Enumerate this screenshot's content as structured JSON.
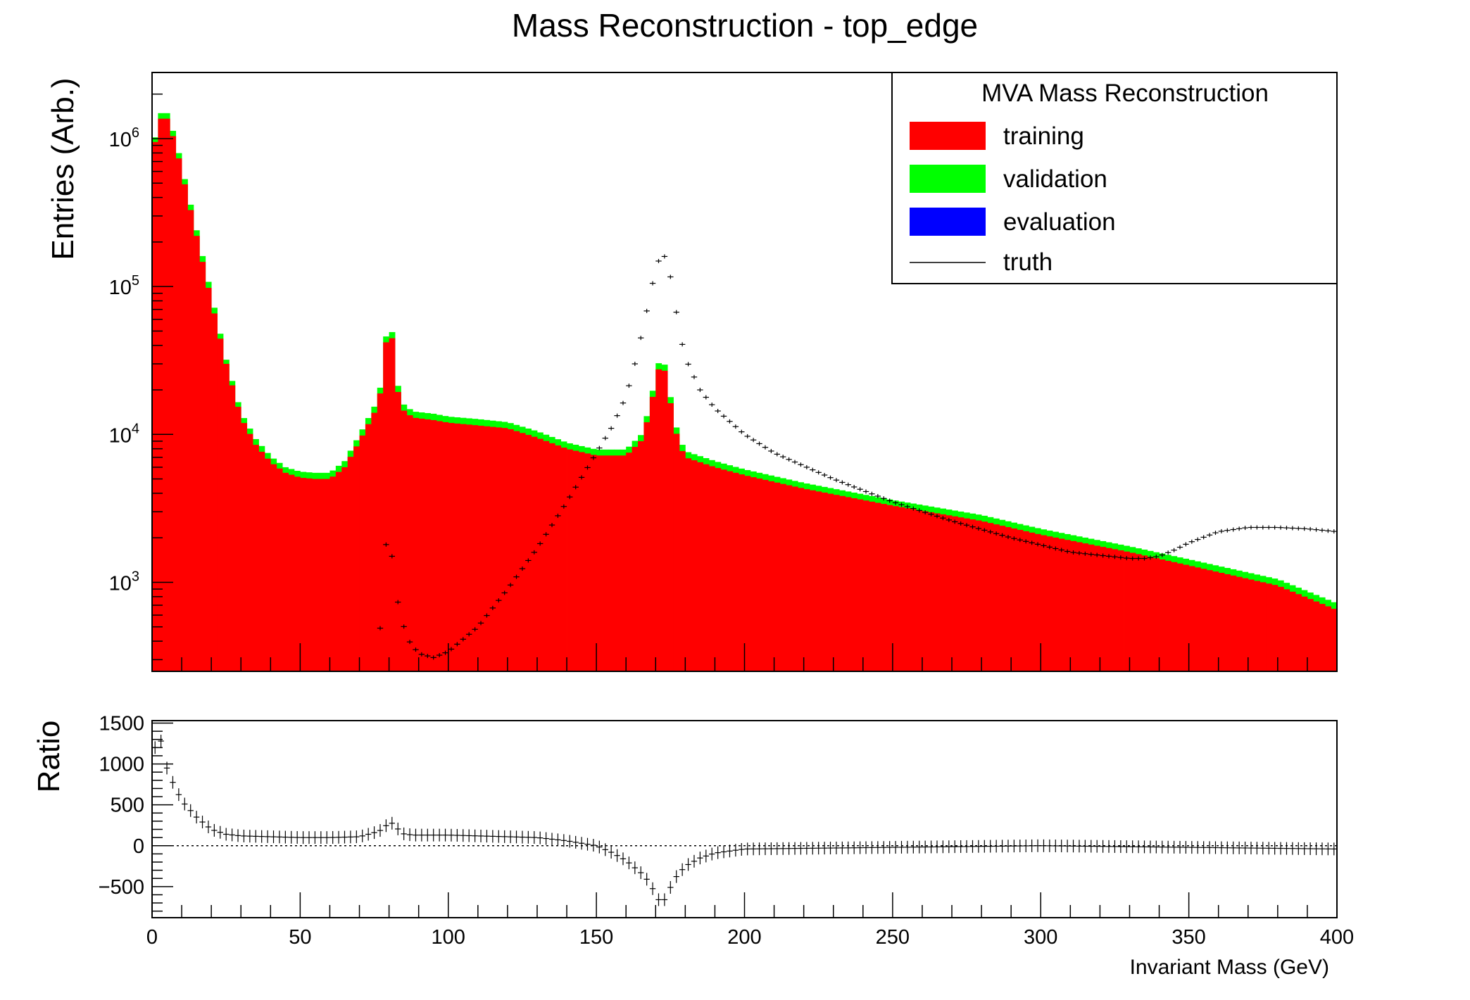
{
  "chart_data": {
    "type": "histogram",
    "title": "Mass Reconstruction - top_edge",
    "xlabel": "Invariant Mass (GeV)",
    "xlim": [
      0,
      400
    ],
    "main": {
      "ylabel": "Entries (Arb.)",
      "yscale": "log",
      "ylim": [
        250,
        2800000
      ],
      "ytick_labels": [
        "10^3",
        "10^4",
        "10^5",
        "10^6"
      ],
      "x": [
        0,
        2,
        4,
        6,
        8,
        10,
        15,
        20,
        25,
        30,
        35,
        40,
        45,
        50,
        55,
        60,
        65,
        70,
        75,
        78,
        80,
        82,
        84,
        88,
        95,
        100,
        110,
        120,
        130,
        140,
        150,
        160,
        165,
        168,
        170,
        172,
        174,
        176,
        178,
        180,
        190,
        200,
        220,
        250,
        280,
        300,
        330,
        350,
        380,
        400
      ],
      "series": [
        {
          "name": "training",
          "color": "#ff0000",
          "values": [
            750000,
            1200000,
            1550000,
            1200000,
            900000,
            600000,
            220000,
            80000,
            30000,
            13000,
            8500,
            6500,
            5500,
            5100,
            5000,
            5000,
            6000,
            9000,
            14000,
            22000,
            80000,
            25000,
            15000,
            13000,
            12500,
            12000,
            11500,
            11000,
            9500,
            8000,
            7200,
            7200,
            9000,
            14000,
            23000,
            33000,
            22000,
            12000,
            8500,
            7000,
            6000,
            5300,
            4300,
            3300,
            2600,
            2100,
            1600,
            1300,
            950,
            650
          ]
        },
        {
          "name": "validation",
          "color": "#00ff00",
          "values": [
            800000,
            1300000,
            1700000,
            1300000,
            980000,
            650000,
            240000,
            88000,
            32000,
            14000,
            9300,
            7100,
            6000,
            5600,
            5500,
            5500,
            6600,
            9900,
            15400,
            24000,
            88000,
            27500,
            16500,
            14300,
            13800,
            13200,
            12700,
            12100,
            10500,
            8800,
            7900,
            7900,
            9900,
            15400,
            25300,
            36300,
            24200,
            13200,
            9400,
            7700,
            6600,
            5800,
            4700,
            3600,
            2850,
            2300,
            1750,
            1430,
            1050,
            720
          ]
        },
        {
          "name": "evaluation",
          "color": "#0000ff",
          "values": []
        }
      ],
      "truth": {
        "name": "truth",
        "x": [
          76,
          78,
          79,
          80,
          81,
          82,
          84,
          86,
          90,
          95,
          100,
          110,
          120,
          130,
          140,
          150,
          155,
          160,
          163,
          166,
          168,
          170,
          172,
          174,
          176,
          178,
          180,
          185,
          190,
          200,
          210,
          230,
          250,
          270,
          290,
          310,
          330,
          335,
          340,
          345,
          350,
          360,
          370,
          380,
          390,
          400
        ],
        "values": [
          300,
          800,
          1800,
          2500,
          1500,
          900,
          600,
          420,
          330,
          310,
          340,
          500,
          900,
          1700,
          3500,
          7500,
          11000,
          18000,
          30000,
          55000,
          85000,
          130000,
          170000,
          150000,
          90000,
          50000,
          33000,
          20000,
          15000,
          10000,
          7500,
          5000,
          3500,
          2600,
          2000,
          1600,
          1450,
          1450,
          1500,
          1650,
          1850,
          2200,
          2350,
          2350,
          2300,
          2200
        ]
      }
    },
    "ratio": {
      "ylabel": "Ratio",
      "ylim": [
        -880,
        1530
      ],
      "ytick_values": [
        -500,
        0,
        500,
        1000,
        1500
      ],
      "ytick_labels": [
        "−500",
        "0",
        "500",
        "1000",
        "1500"
      ],
      "x": [
        0,
        1,
        2,
        3,
        4,
        5,
        6,
        8,
        10,
        15,
        20,
        25,
        30,
        40,
        50,
        60,
        70,
        75,
        78,
        80,
        82,
        84,
        88,
        95,
        100,
        110,
        120,
        130,
        140,
        145,
        150,
        155,
        160,
        165,
        168,
        170,
        172,
        174,
        176,
        180,
        185,
        190,
        200,
        250,
        300,
        350,
        400
      ],
      "values": [
        880,
        1200,
        1300,
        1280,
        1150,
        950,
        850,
        700,
        550,
        350,
        200,
        140,
        120,
        110,
        100,
        100,
        110,
        160,
        200,
        290,
        260,
        150,
        130,
        130,
        130,
        120,
        110,
        100,
        60,
        30,
        0,
        -80,
        -180,
        -330,
        -450,
        -600,
        -720,
        -600,
        -420,
        -250,
        -150,
        -90,
        -40,
        -20,
        0,
        -20,
        -40
      ]
    },
    "xtick_labels": [
      "0",
      "50",
      "100",
      "150",
      "200",
      "250",
      "300",
      "350",
      "400"
    ],
    "legend": {
      "title": "MVA Mass Reconstruction",
      "placement": "top-right",
      "entries": [
        "training",
        "validation",
        "evaluation",
        "truth"
      ]
    }
  }
}
